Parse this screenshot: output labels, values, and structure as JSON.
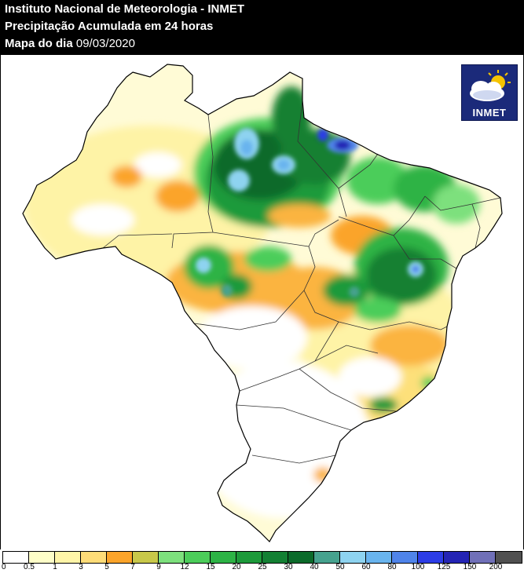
{
  "header": {
    "line1": "Instituto Nacional de Meteorologia - INMET",
    "line2": "Precipitação Acumulada em 24 horas",
    "line3_label": "Mapa do dia",
    "date": "09/03/2020"
  },
  "logo": {
    "text": "INMET",
    "icon": "sun-cloud-icon"
  },
  "legend": {
    "labels": [
      "0",
      "0.5",
      "1",
      "3",
      "5",
      "7",
      "9",
      "12",
      "15",
      "20",
      "25",
      "30",
      "40",
      "50",
      "60",
      "80",
      "100",
      "125",
      "150",
      "200"
    ],
    "colors": [
      "#ffffff",
      "#fefec8",
      "#fff5a8",
      "#fedc78",
      "#fba42a",
      "#c8c84a",
      "#7de07d",
      "#4ccd5a",
      "#2db345",
      "#1d9a3a",
      "#138033",
      "#0b6a2a",
      "#46a28e",
      "#8ed3f0",
      "#69b4ee",
      "#4f84ea",
      "#2c3ce6",
      "#2424b4",
      "#7070b8",
      "#505050"
    ]
  }
}
